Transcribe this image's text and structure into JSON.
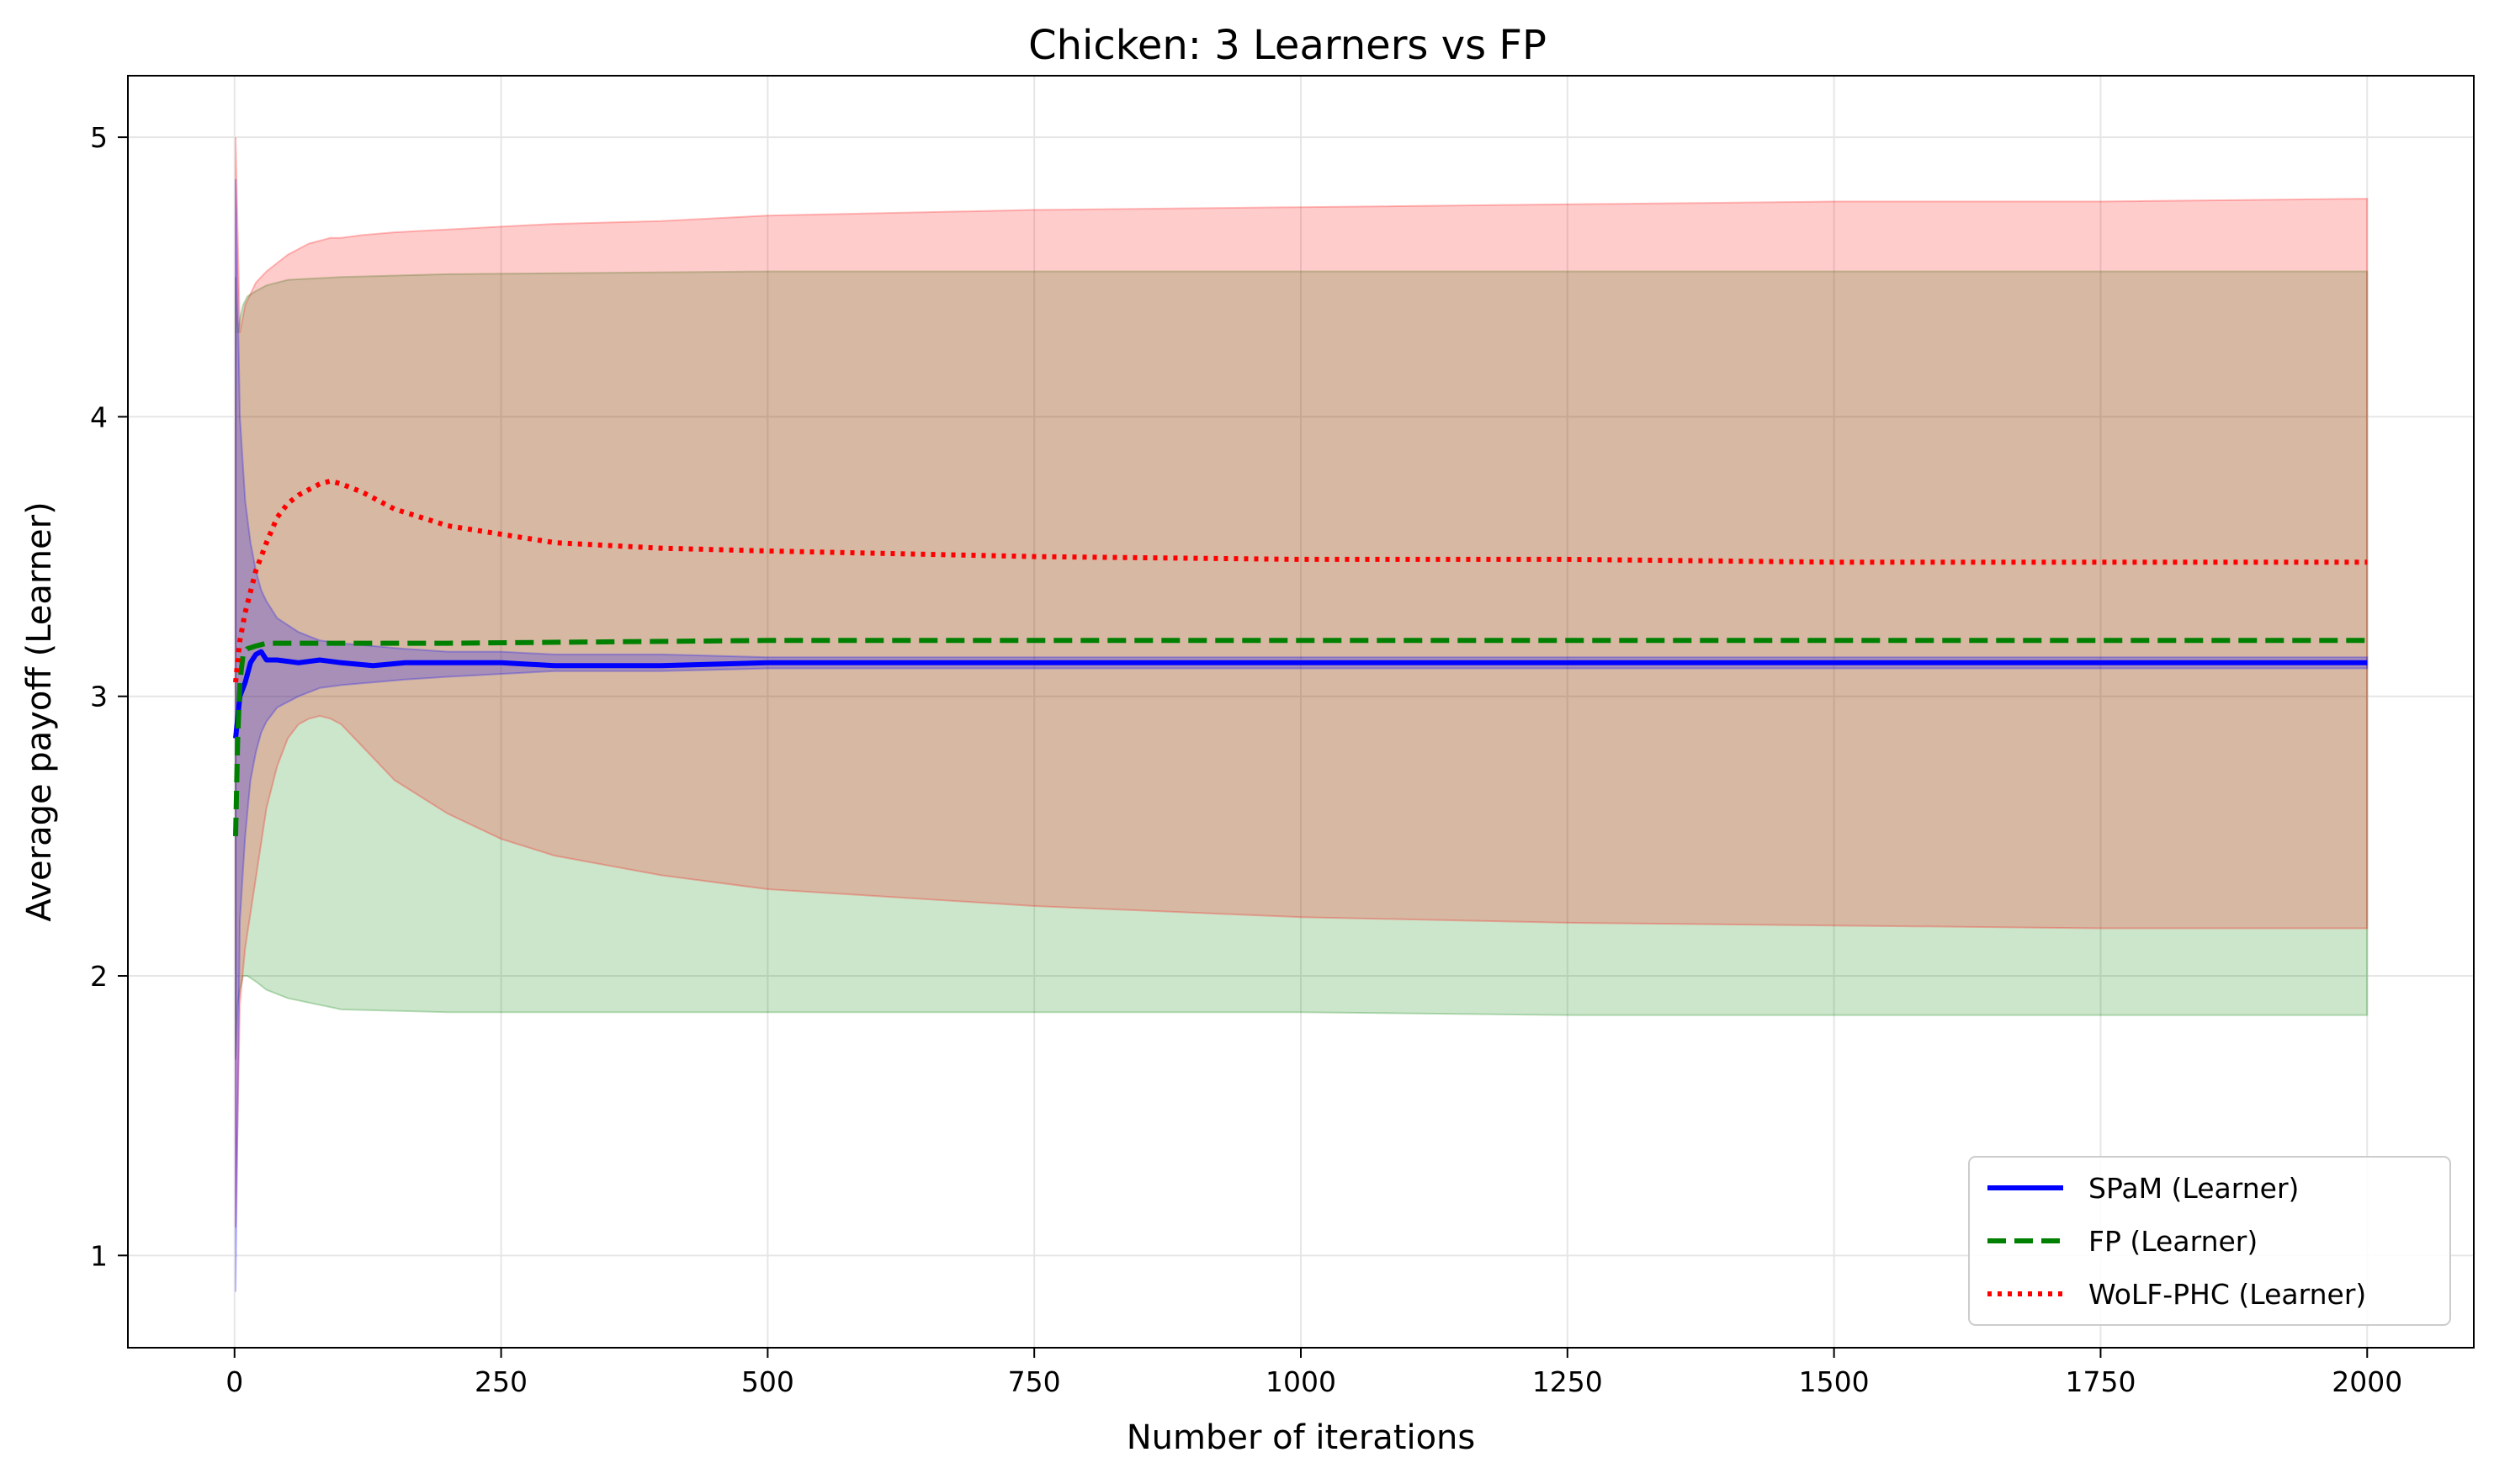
{
  "chart_data": {
    "type": "line",
    "title": "Chicken: 3 Learners vs FP",
    "xlabel": "Number of iterations",
    "ylabel": "Average payoff (Learner)",
    "xlim": [
      -100,
      2100
    ],
    "ylim": [
      0.67,
      5.22
    ],
    "xticks": [
      0,
      250,
      500,
      750,
      1000,
      1250,
      1500,
      1750,
      2000
    ],
    "xtick_labels": [
      "0",
      "250",
      "500",
      "750",
      "1000",
      "1250",
      "1500",
      "1750",
      "2000"
    ],
    "yticks": [
      1,
      2,
      3,
      4,
      5
    ],
    "ytick_labels": [
      "1",
      "2",
      "3",
      "4",
      "5"
    ],
    "grid": true,
    "legend_position": "bottom-right",
    "series": [
      {
        "name": "SPaM (Learner)",
        "color": "#0000ff",
        "style": "solid",
        "x": [
          1,
          5,
          10,
          15,
          20,
          25,
          30,
          40,
          60,
          80,
          100,
          130,
          160,
          200,
          250,
          300,
          400,
          500,
          750,
          1000,
          1250,
          1500,
          1750,
          2000
        ],
        "y": [
          2.85,
          3.0,
          3.05,
          3.12,
          3.15,
          3.16,
          3.13,
          3.13,
          3.12,
          3.13,
          3.12,
          3.11,
          3.12,
          3.12,
          3.12,
          3.11,
          3.11,
          3.12,
          3.12,
          3.12,
          3.12,
          3.12,
          3.12,
          3.12
        ],
        "band_upper": [
          4.85,
          4.0,
          3.7,
          3.55,
          3.45,
          3.38,
          3.34,
          3.28,
          3.23,
          3.2,
          3.19,
          3.18,
          3.17,
          3.16,
          3.16,
          3.15,
          3.15,
          3.14,
          3.14,
          3.14,
          3.14,
          3.14,
          3.14,
          3.14
        ],
        "band_lower": [
          0.87,
          2.2,
          2.5,
          2.7,
          2.8,
          2.87,
          2.91,
          2.96,
          3.0,
          3.03,
          3.04,
          3.05,
          3.06,
          3.07,
          3.08,
          3.09,
          3.09,
          3.1,
          3.1,
          3.1,
          3.1,
          3.1,
          3.1,
          3.1
        ]
      },
      {
        "name": "FP (Learner)",
        "color": "#008000",
        "style": "dashed",
        "x": [
          1,
          3,
          5,
          8,
          12,
          20,
          30,
          50,
          100,
          200,
          500,
          750,
          1000,
          1250,
          1500,
          1750,
          2000
        ],
        "y": [
          2.5,
          2.85,
          3.05,
          3.15,
          3.17,
          3.18,
          3.19,
          3.19,
          3.19,
          3.19,
          3.2,
          3.2,
          3.2,
          3.2,
          3.2,
          3.2,
          3.2
        ],
        "band_upper": [
          4.5,
          4.3,
          4.35,
          4.4,
          4.43,
          4.45,
          4.47,
          4.49,
          4.5,
          4.51,
          4.52,
          4.52,
          4.52,
          4.52,
          4.52,
          4.52,
          4.52
        ],
        "band_lower": [
          1.7,
          1.9,
          1.95,
          2.0,
          2.0,
          1.98,
          1.95,
          1.92,
          1.88,
          1.87,
          1.87,
          1.87,
          1.87,
          1.86,
          1.86,
          1.86,
          1.86
        ]
      },
      {
        "name": "WoLF-PHC (Learner)",
        "color": "#ff0000",
        "style": "dotted",
        "x": [
          1,
          5,
          10,
          20,
          30,
          40,
          50,
          60,
          70,
          80,
          90,
          100,
          120,
          150,
          200,
          250,
          300,
          400,
          500,
          750,
          1000,
          1250,
          1500,
          1750,
          2000
        ],
        "y": [
          3.05,
          3.2,
          3.3,
          3.45,
          3.55,
          3.64,
          3.69,
          3.72,
          3.74,
          3.76,
          3.77,
          3.76,
          3.73,
          3.67,
          3.61,
          3.58,
          3.55,
          3.53,
          3.52,
          3.5,
          3.49,
          3.49,
          3.48,
          3.48,
          3.48
        ],
        "band_upper": [
          5.0,
          4.3,
          4.4,
          4.48,
          4.52,
          4.55,
          4.58,
          4.6,
          4.62,
          4.63,
          4.64,
          4.64,
          4.65,
          4.66,
          4.67,
          4.68,
          4.69,
          4.7,
          4.72,
          4.74,
          4.75,
          4.76,
          4.77,
          4.77,
          4.78
        ],
        "band_lower": [
          1.1,
          1.9,
          2.1,
          2.35,
          2.6,
          2.75,
          2.85,
          2.9,
          2.92,
          2.93,
          2.92,
          2.9,
          2.82,
          2.7,
          2.58,
          2.49,
          2.43,
          2.36,
          2.31,
          2.25,
          2.21,
          2.19,
          2.18,
          2.17,
          2.17
        ]
      }
    ]
  }
}
